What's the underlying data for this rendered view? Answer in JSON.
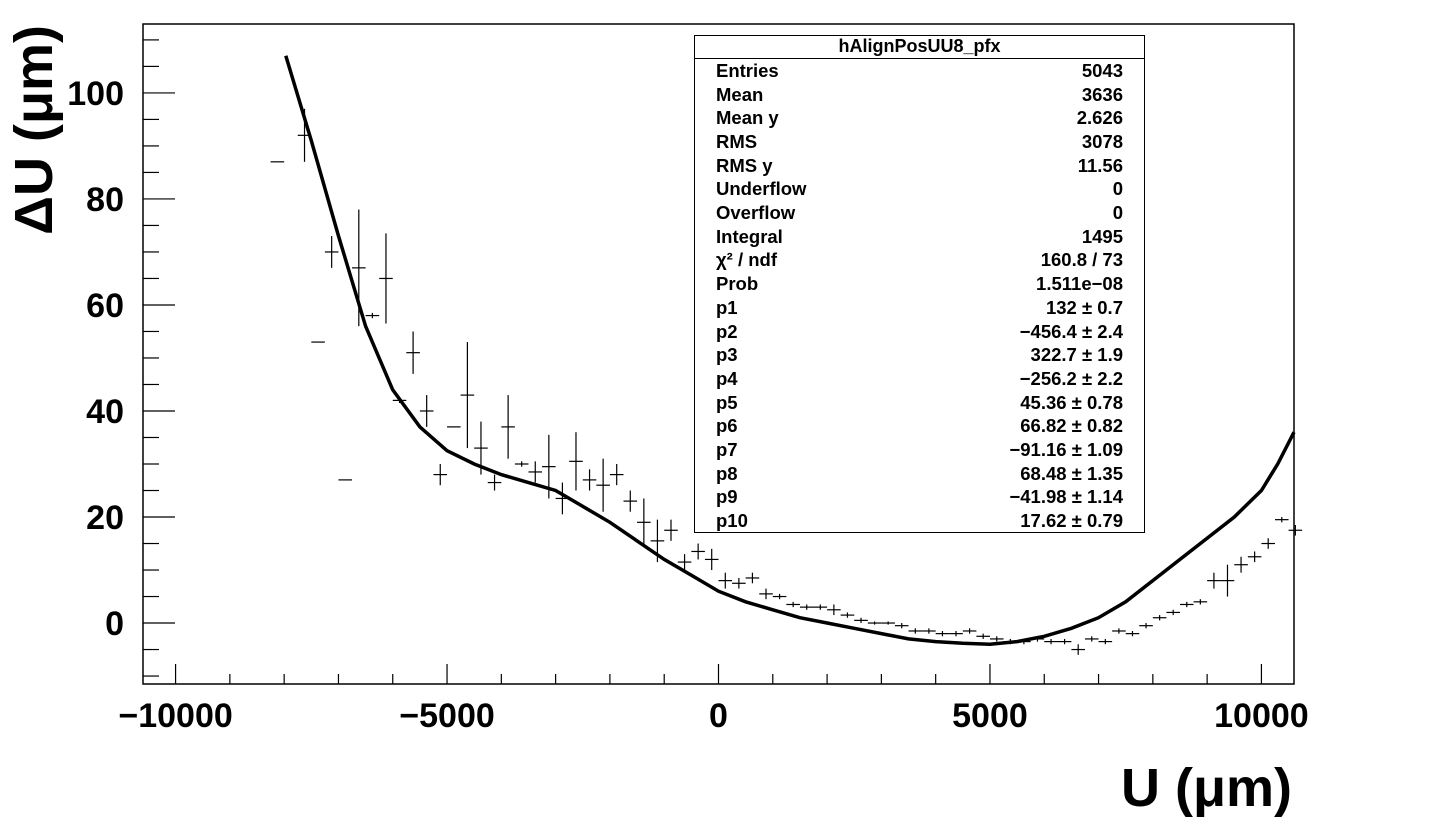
{
  "chart_data": {
    "type": "scatter",
    "xlabel": "U (μm)",
    "ylabel": "ΔU (μm)",
    "xlim": [
      -10600,
      10600
    ],
    "ylim": [
      -11.5,
      113
    ],
    "xticks": [
      {
        "value": -10000,
        "label": "−10000"
      },
      {
        "value": -5000,
        "label": "−5000"
      },
      {
        "value": 0,
        "label": "0"
      },
      {
        "value": 5000,
        "label": "5000"
      },
      {
        "value": 10000,
        "label": "10000"
      }
    ],
    "yticks": [
      {
        "value": 0,
        "label": "0"
      },
      {
        "value": 20,
        "label": "20"
      },
      {
        "value": 40,
        "label": "40"
      },
      {
        "value": 60,
        "label": "60"
      },
      {
        "value": 80,
        "label": "80"
      },
      {
        "value": 100,
        "label": "100"
      }
    ],
    "grid": false,
    "legend": "none",
    "series": [
      {
        "type": "errorbar",
        "color": "#000000",
        "x_halfwidth": 125,
        "points": [
          {
            "x": -8125,
            "y": 87,
            "yerr": 0
          },
          {
            "x": -7625,
            "y": 92,
            "yerr": 5
          },
          {
            "x": -7375,
            "y": 53,
            "yerr": 0
          },
          {
            "x": -7125,
            "y": 70,
            "yerr": 3
          },
          {
            "x": -6875,
            "y": 27,
            "yerr": 0
          },
          {
            "x": -6625,
            "y": 67,
            "yerr": 11
          },
          {
            "x": -6375,
            "y": 58,
            "yerr": 0.5
          },
          {
            "x": -6125,
            "y": 65,
            "yerr": 8.5
          },
          {
            "x": -5875,
            "y": 42,
            "yerr": 0.5
          },
          {
            "x": -5625,
            "y": 51,
            "yerr": 4
          },
          {
            "x": -5375,
            "y": 40,
            "yerr": 3
          },
          {
            "x": -5125,
            "y": 28,
            "yerr": 2
          },
          {
            "x": -4875,
            "y": 37,
            "yerr": 0
          },
          {
            "x": -4625,
            "y": 43,
            "yerr": 10
          },
          {
            "x": -4375,
            "y": 33,
            "yerr": 5
          },
          {
            "x": -4125,
            "y": 26.5,
            "yerr": 1.5
          },
          {
            "x": -3875,
            "y": 37,
            "yerr": 6
          },
          {
            "x": -3625,
            "y": 30,
            "yerr": 0.5
          },
          {
            "x": -3375,
            "y": 28.5,
            "yerr": 2
          },
          {
            "x": -3125,
            "y": 29.5,
            "yerr": 6
          },
          {
            "x": -2875,
            "y": 23.5,
            "yerr": 3
          },
          {
            "x": -2625,
            "y": 30.5,
            "yerr": 5.5
          },
          {
            "x": -2375,
            "y": 27,
            "yerr": 2
          },
          {
            "x": -2125,
            "y": 26,
            "yerr": 5
          },
          {
            "x": -1875,
            "y": 28,
            "yerr": 2
          },
          {
            "x": -1625,
            "y": 23,
            "yerr": 2
          },
          {
            "x": -1375,
            "y": 19,
            "yerr": 4.5
          },
          {
            "x": -1125,
            "y": 15.5,
            "yerr": 4
          },
          {
            "x": -875,
            "y": 17.5,
            "yerr": 2
          },
          {
            "x": -625,
            "y": 11.5,
            "yerr": 1.5
          },
          {
            "x": -375,
            "y": 13.5,
            "yerr": 1.5
          },
          {
            "x": -125,
            "y": 12,
            "yerr": 2
          },
          {
            "x": 125,
            "y": 8,
            "yerr": 1.5
          },
          {
            "x": 375,
            "y": 7.5,
            "yerr": 1
          },
          {
            "x": 625,
            "y": 8.5,
            "yerr": 1
          },
          {
            "x": 875,
            "y": 5.5,
            "yerr": 1
          },
          {
            "x": 1125,
            "y": 5,
            "yerr": 0.5
          },
          {
            "x": 1375,
            "y": 3.5,
            "yerr": 0.5
          },
          {
            "x": 1625,
            "y": 3,
            "yerr": 0.5
          },
          {
            "x": 1875,
            "y": 3,
            "yerr": 0.5
          },
          {
            "x": 2125,
            "y": 2.5,
            "yerr": 1
          },
          {
            "x": 2375,
            "y": 1.5,
            "yerr": 0.5
          },
          {
            "x": 2625,
            "y": 0.5,
            "yerr": 0.5
          },
          {
            "x": 2875,
            "y": 0,
            "yerr": 0.3
          },
          {
            "x": 3125,
            "y": 0,
            "yerr": 0.3
          },
          {
            "x": 3375,
            "y": -0.5,
            "yerr": 0.5
          },
          {
            "x": 3625,
            "y": -1.5,
            "yerr": 0.5
          },
          {
            "x": 3875,
            "y": -1.5,
            "yerr": 0.5
          },
          {
            "x": 4125,
            "y": -2,
            "yerr": 0.5
          },
          {
            "x": 4375,
            "y": -2,
            "yerr": 0.5
          },
          {
            "x": 4625,
            "y": -1.5,
            "yerr": 0.5
          },
          {
            "x": 4875,
            "y": -2.5,
            "yerr": 0.5
          },
          {
            "x": 5125,
            "y": -3,
            "yerr": 0.5
          },
          {
            "x": 5375,
            "y": -3.5,
            "yerr": 0.5
          },
          {
            "x": 5625,
            "y": -3.5,
            "yerr": 0.5
          },
          {
            "x": 5875,
            "y": -3,
            "yerr": 0.5
          },
          {
            "x": 6125,
            "y": -3.5,
            "yerr": 0.5
          },
          {
            "x": 6375,
            "y": -3.5,
            "yerr": 0.5
          },
          {
            "x": 6625,
            "y": -5,
            "yerr": 1
          },
          {
            "x": 6875,
            "y": -3,
            "yerr": 0.5
          },
          {
            "x": 7125,
            "y": -3.5,
            "yerr": 0.5
          },
          {
            "x": 7375,
            "y": -1.5,
            "yerr": 0.5
          },
          {
            "x": 7625,
            "y": -2,
            "yerr": 0.5
          },
          {
            "x": 7875,
            "y": -0.5,
            "yerr": 0.5
          },
          {
            "x": 8125,
            "y": 1,
            "yerr": 0.5
          },
          {
            "x": 8375,
            "y": 2,
            "yerr": 0.5
          },
          {
            "x": 8625,
            "y": 3.5,
            "yerr": 0.5
          },
          {
            "x": 8875,
            "y": 4,
            "yerr": 0.5
          },
          {
            "x": 9125,
            "y": 8,
            "yerr": 1.5
          },
          {
            "x": 9375,
            "y": 8,
            "yerr": 3
          },
          {
            "x": 9625,
            "y": 11,
            "yerr": 1.5
          },
          {
            "x": 9875,
            "y": 12.5,
            "yerr": 1
          },
          {
            "x": 10125,
            "y": 15,
            "yerr": 1
          },
          {
            "x": 10375,
            "y": 19.5,
            "yerr": 0.5
          },
          {
            "x": 10625,
            "y": 17.5,
            "yerr": 1
          }
        ]
      },
      {
        "type": "fit-line",
        "color": "#000000",
        "points": [
          {
            "x": -7970,
            "y": 107
          },
          {
            "x": -7500,
            "y": 91
          },
          {
            "x": -7000,
            "y": 73
          },
          {
            "x": -6500,
            "y": 56
          },
          {
            "x": -6000,
            "y": 44
          },
          {
            "x": -5500,
            "y": 37
          },
          {
            "x": -5000,
            "y": 32.5
          },
          {
            "x": -4500,
            "y": 30
          },
          {
            "x": -4000,
            "y": 28
          },
          {
            "x": -3500,
            "y": 26.5
          },
          {
            "x": -3000,
            "y": 25
          },
          {
            "x": -2500,
            "y": 22
          },
          {
            "x": -2000,
            "y": 19
          },
          {
            "x": -1500,
            "y": 15.5
          },
          {
            "x": -1000,
            "y": 12
          },
          {
            "x": -500,
            "y": 9
          },
          {
            "x": 0,
            "y": 6
          },
          {
            "x": 500,
            "y": 4
          },
          {
            "x": 1000,
            "y": 2.5
          },
          {
            "x": 1500,
            "y": 1
          },
          {
            "x": 2000,
            "y": 0
          },
          {
            "x": 2500,
            "y": -1
          },
          {
            "x": 3000,
            "y": -2
          },
          {
            "x": 3500,
            "y": -3
          },
          {
            "x": 4000,
            "y": -3.5
          },
          {
            "x": 4500,
            "y": -3.8
          },
          {
            "x": 5000,
            "y": -4
          },
          {
            "x": 5500,
            "y": -3.5
          },
          {
            "x": 6000,
            "y": -2.5
          },
          {
            "x": 6500,
            "y": -1
          },
          {
            "x": 7000,
            "y": 1
          },
          {
            "x": 7500,
            "y": 4
          },
          {
            "x": 8000,
            "y": 8
          },
          {
            "x": 8500,
            "y": 12
          },
          {
            "x": 9000,
            "y": 16
          },
          {
            "x": 9500,
            "y": 20
          },
          {
            "x": 10000,
            "y": 25
          },
          {
            "x": 10300,
            "y": 30
          },
          {
            "x": 10600,
            "y": 36
          }
        ]
      }
    ]
  },
  "stats_box": {
    "title": "hAlignPosUU8_pfx",
    "rows": [
      {
        "label": "Entries",
        "value": "5043"
      },
      {
        "label": "Mean",
        "value": "3636"
      },
      {
        "label": "Mean y",
        "value": "2.626"
      },
      {
        "label": "RMS",
        "value": "3078"
      },
      {
        "label": "RMS y",
        "value": "11.56"
      },
      {
        "label": "Underflow",
        "value": "0"
      },
      {
        "label": "Overflow",
        "value": "0"
      },
      {
        "label": "Integral",
        "value": "1495"
      },
      {
        "label": "χ² / ndf",
        "value": "160.8 / 73"
      },
      {
        "label": "Prob",
        "value": "1.511e−08"
      },
      {
        "label": "p1",
        "value": "132 ± 0.7"
      },
      {
        "label": "p2",
        "value": "−456.4 ± 2.4"
      },
      {
        "label": "p3",
        "value": "322.7 ± 1.9"
      },
      {
        "label": "p4",
        "value": "−256.2 ± 2.2"
      },
      {
        "label": "p5",
        "value": "45.36 ± 0.78"
      },
      {
        "label": "p6",
        "value": "66.82 ± 0.82"
      },
      {
        "label": "p7",
        "value": "−91.16 ± 1.09"
      },
      {
        "label": "p8",
        "value": "68.48 ± 1.35"
      },
      {
        "label": "p9",
        "value": "−41.98 ± 1.14"
      },
      {
        "label": "p10",
        "value": "17.62 ± 0.79"
      }
    ]
  }
}
